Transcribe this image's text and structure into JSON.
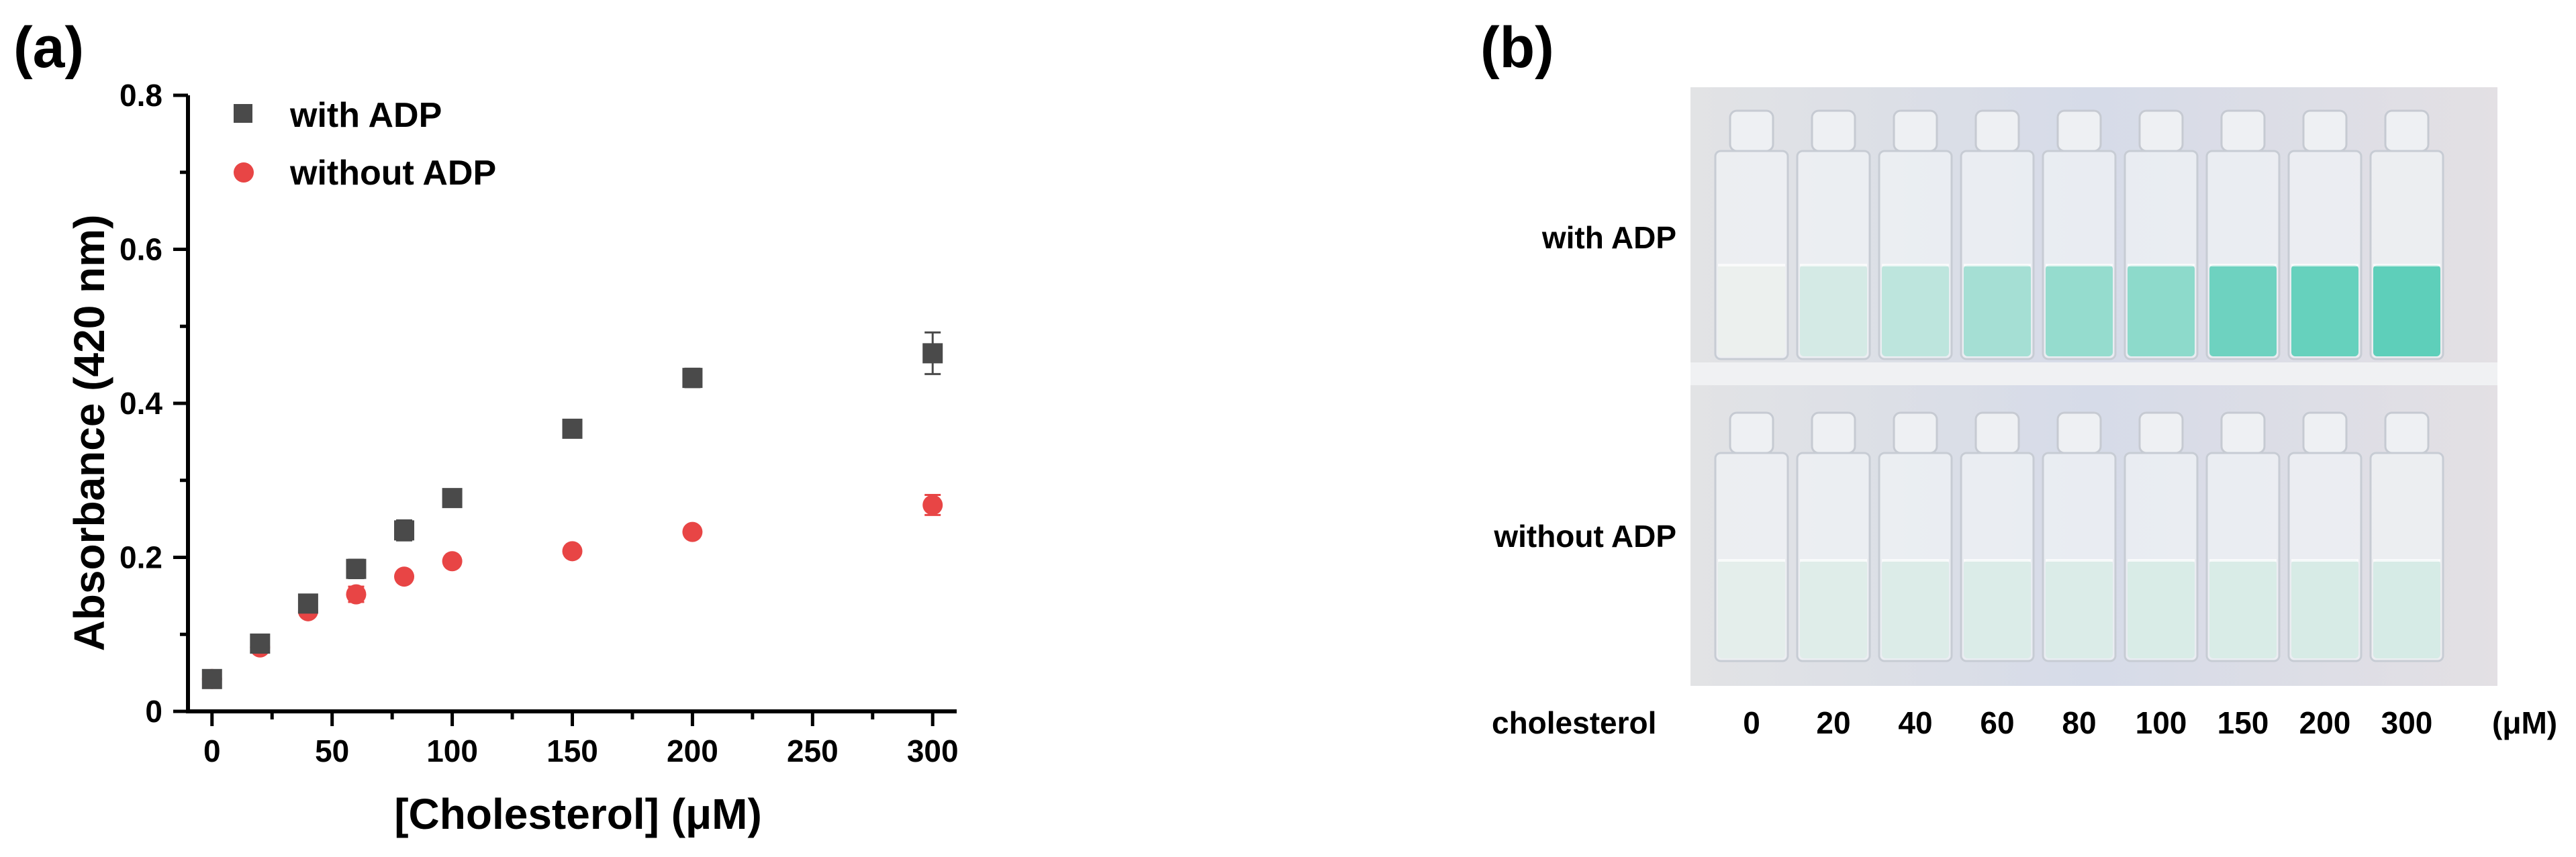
{
  "panel_a_label": "(a)",
  "panel_b_label": "(b)",
  "colors": {
    "with_adp": "#4a4a4a",
    "without_adp": "#e84545",
    "photo_bg": "#dfe0e2",
    "tint_with_adp": "#4ecbb4"
  },
  "chart_data": {
    "type": "scatter",
    "title": "",
    "xlabel": "[Cholesterol] (μM)",
    "ylabel": "Absorbance (420 nm)",
    "xlim": [
      -10,
      310
    ],
    "ylim": [
      0,
      0.8
    ],
    "xticks": [
      0,
      50,
      100,
      150,
      200,
      250,
      300
    ],
    "xtick_labels": [
      "0",
      "50",
      "100",
      "150",
      "200",
      "250",
      "300"
    ],
    "yticks": [
      0,
      0.2,
      0.4,
      0.6,
      0.8
    ],
    "ytick_labels": [
      "0",
      "0.2",
      "0.4",
      "0.6",
      "0.8"
    ],
    "grid": false,
    "legend_position": "top-left",
    "x": [
      0,
      20,
      40,
      60,
      80,
      100,
      150,
      200,
      300
    ],
    "series": [
      {
        "name": "with ADP",
        "marker": "square",
        "color": "#4a4a4a",
        "values": [
          0.042,
          0.088,
          0.14,
          0.185,
          0.235,
          0.277,
          0.367,
          0.433,
          0.465
        ],
        "errors": [
          0.005,
          0.005,
          0.005,
          0.012,
          0.013,
          0.005,
          0.005,
          0.012,
          0.027
        ]
      },
      {
        "name": "without ADP",
        "marker": "circle",
        "color": "#e84545",
        "values": [
          0.042,
          0.083,
          0.13,
          0.152,
          0.175,
          0.195,
          0.208,
          0.233,
          0.268
        ],
        "errors": [
          0.005,
          0.005,
          0.005,
          0.01,
          0.005,
          0.005,
          0.005,
          0.005,
          0.013
        ]
      }
    ]
  },
  "photo": {
    "row_labels": [
      "with ADP",
      "without ADP"
    ],
    "x_label": "cholesterol",
    "unit_label": "(μM)",
    "concentrations": [
      "0",
      "20",
      "40",
      "60",
      "80",
      "100",
      "150",
      "200",
      "300"
    ],
    "tint_intensity_with_adp": [
      0.0,
      0.15,
      0.3,
      0.45,
      0.55,
      0.6,
      0.8,
      0.85,
      0.9
    ],
    "tint_intensity_without_adp": [
      0.05,
      0.08,
      0.1,
      0.11,
      0.11,
      0.12,
      0.12,
      0.13,
      0.14
    ]
  }
}
